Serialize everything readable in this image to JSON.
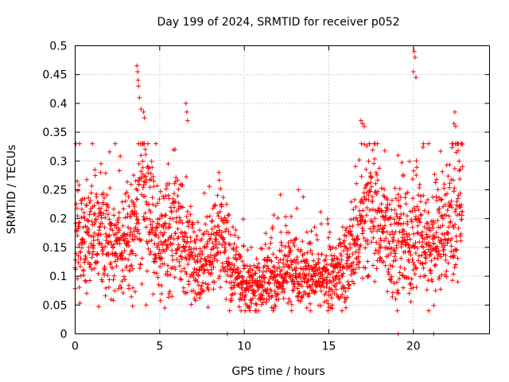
{
  "chart_data": {
    "type": "scatter",
    "title": "Day 199 of 2024, SRMTID for receiver p052",
    "xlabel": "GPS time / hours",
    "ylabel": "SRMTID / TECUs",
    "xlim": [
      0,
      24.5
    ],
    "ylim": [
      0,
      0.5
    ],
    "x_ticks": [
      0,
      5,
      10,
      15,
      20
    ],
    "x_tick_labels": [
      "0",
      "5",
      "10",
      "15",
      "20"
    ],
    "y_ticks": [
      0,
      0.05,
      0.1,
      0.15,
      0.2,
      0.25,
      0.3,
      0.35,
      0.4,
      0.45,
      0.5
    ],
    "y_tick_labels": [
      "0",
      "0.05",
      "0.1",
      "0.15",
      "0.2",
      "0.25",
      "0.3",
      "0.35",
      "0.4",
      "0.45",
      "0.5"
    ],
    "grid": true,
    "marker": "+",
    "color": "#ff0000",
    "series": [
      {
        "name": "SRMTID",
        "profile": {
          "hours": [
            0,
            1,
            2,
            3,
            3.7,
            4.2,
            5,
            5.8,
            6.5,
            7.5,
            8.5,
            9.3,
            10,
            11,
            12,
            13,
            14,
            15,
            16,
            17,
            17.5,
            18.5,
            19.5,
            20.3,
            21,
            22,
            22.9
          ],
          "median_tecu": [
            0.16,
            0.17,
            0.17,
            0.15,
            0.2,
            0.25,
            0.15,
            0.17,
            0.15,
            0.12,
            0.16,
            0.11,
            0.08,
            0.09,
            0.1,
            0.12,
            0.1,
            0.09,
            0.12,
            0.18,
            0.22,
            0.17,
            0.15,
            0.17,
            0.15,
            0.19,
            0.22
          ]
        },
        "extremes": [
          {
            "x": 3.65,
            "y": 0.465
          },
          {
            "x": 3.7,
            "y": 0.455
          },
          {
            "x": 3.72,
            "y": 0.44
          },
          {
            "x": 3.75,
            "y": 0.43
          },
          {
            "x": 3.8,
            "y": 0.41
          },
          {
            "x": 3.9,
            "y": 0.39
          },
          {
            "x": 4.05,
            "y": 0.385
          },
          {
            "x": 4.1,
            "y": 0.375
          },
          {
            "x": 6.55,
            "y": 0.4
          },
          {
            "x": 6.6,
            "y": 0.385
          },
          {
            "x": 6.65,
            "y": 0.37
          },
          {
            "x": 16.9,
            "y": 0.37
          },
          {
            "x": 17.0,
            "y": 0.365
          },
          {
            "x": 17.1,
            "y": 0.36
          },
          {
            "x": 20.05,
            "y": 0.49
          },
          {
            "x": 20.1,
            "y": 0.48
          },
          {
            "x": 20.0,
            "y": 0.455
          },
          {
            "x": 20.15,
            "y": 0.445
          },
          {
            "x": 22.45,
            "y": 0.385
          },
          {
            "x": 22.4,
            "y": 0.365
          },
          {
            "x": 22.5,
            "y": 0.36
          },
          {
            "x": 22.9,
            "y": 0.29
          },
          {
            "x": 9.0,
            "y": 0.0
          },
          {
            "x": 19.1,
            "y": 0.0
          },
          {
            "x": 21.2,
            "y": 0.0
          },
          {
            "x": 4.2,
            "y": 0.05
          },
          {
            "x": 5.3,
            "y": 0.045
          },
          {
            "x": 3.4,
            "y": 0.048
          },
          {
            "x": 13.7,
            "y": 0.045
          },
          {
            "x": 15.2,
            "y": 0.05
          },
          {
            "x": 13.2,
            "y": 0.25
          },
          {
            "x": 8.5,
            "y": 0.28
          },
          {
            "x": 1.5,
            "y": 0.28
          },
          {
            "x": 5.9,
            "y": 0.32
          },
          {
            "x": 5.5,
            "y": 0.295
          },
          {
            "x": 19.4,
            "y": 0.08
          },
          {
            "x": 19.1,
            "y": 0.31
          },
          {
            "x": 20.9,
            "y": 0.33
          }
        ]
      }
    ]
  }
}
